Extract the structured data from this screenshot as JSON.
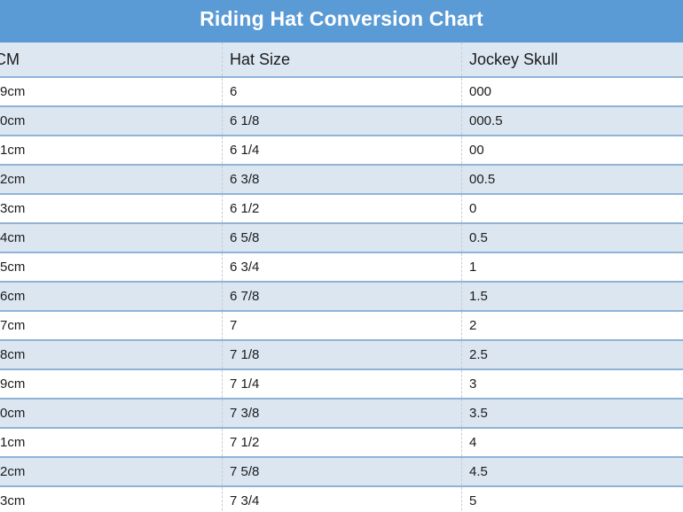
{
  "chart_data": {
    "type": "table",
    "title": "Riding Hat Conversion Chart",
    "columns": [
      "CM",
      "Hat Size",
      "Jockey Skull"
    ],
    "rows": [
      {
        "cm": "9cm",
        "hat_size": "6",
        "jockey_skull": "000"
      },
      {
        "cm": "0cm",
        "hat_size": "6 1/8",
        "jockey_skull": "000.5"
      },
      {
        "cm": "1cm",
        "hat_size": "6 1/4",
        "jockey_skull": "00"
      },
      {
        "cm": "2cm",
        "hat_size": "6 3/8",
        "jockey_skull": "00.5"
      },
      {
        "cm": "3cm",
        "hat_size": "6 1/2",
        "jockey_skull": "0"
      },
      {
        "cm": "4cm",
        "hat_size": "6 5/8",
        "jockey_skull": "0.5"
      },
      {
        "cm": "5cm",
        "hat_size": "6 3/4",
        "jockey_skull": "1"
      },
      {
        "cm": "6cm",
        "hat_size": "6 7/8",
        "jockey_skull": "1.5"
      },
      {
        "cm": "7cm",
        "hat_size": "7",
        "jockey_skull": "2"
      },
      {
        "cm": "8cm",
        "hat_size": "7 1/8",
        "jockey_skull": "2.5"
      },
      {
        "cm": "9cm",
        "hat_size": "7 1/4",
        "jockey_skull": "3"
      },
      {
        "cm": "0cm",
        "hat_size": "7 3/8",
        "jockey_skull": "3.5"
      },
      {
        "cm": "1cm",
        "hat_size": "7 1/2",
        "jockey_skull": "4"
      },
      {
        "cm": "2cm",
        "hat_size": "7 5/8",
        "jockey_skull": "4.5"
      },
      {
        "cm": "3cm",
        "hat_size": "7 3/4",
        "jockey_skull": "5"
      }
    ],
    "layout": {
      "banding": "alternating rows, first row white",
      "grid": "horizontal blue rules, dashed vertical column separators",
      "legend": "none"
    }
  },
  "colors": {
    "title_bar": "#5b9bd5",
    "title_text": "#ffffff",
    "header_bg": "#dde7f2",
    "band_row_bg": "#dce6f1",
    "white_row_bg": "#ffffff",
    "row_line": "#8fb3d7",
    "column_dash": "#c4ced8",
    "cell_text": "#1b1b1b"
  }
}
